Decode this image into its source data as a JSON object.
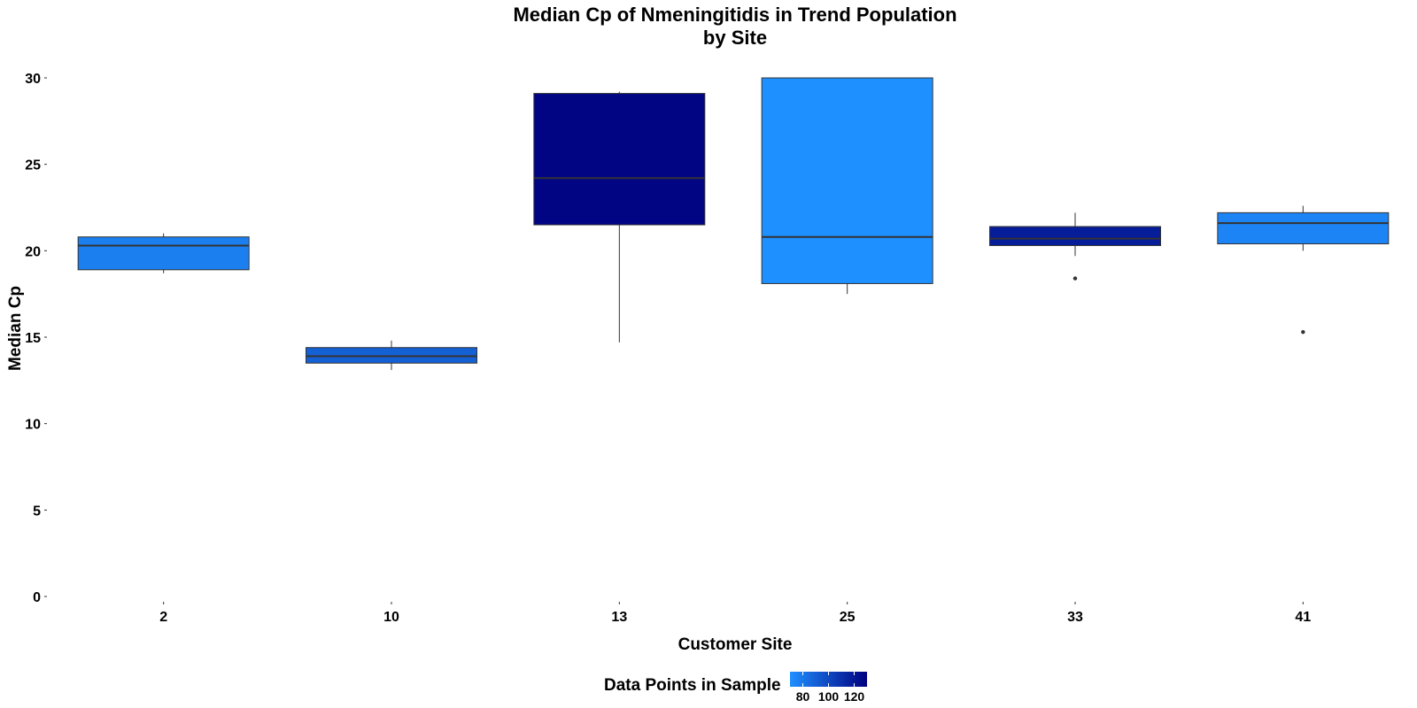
{
  "chart_data": {
    "type": "boxplot",
    "title_line1": "Median Cp of Nmeningitidis in Trend Population",
    "title_line2": "by Site",
    "xlabel": "Customer Site",
    "ylabel": "Median Cp",
    "ylim": [
      -1.5,
      31
    ],
    "yticks": [
      0,
      5,
      10,
      15,
      20,
      25,
      30
    ],
    "grid": false,
    "categories": [
      "2",
      "10",
      "13",
      "25",
      "33",
      "41"
    ],
    "boxes": [
      {
        "site": "2",
        "whisker_low": 18.7,
        "q1": 18.9,
        "median": 20.3,
        "q3": 20.8,
        "whisker_high": 21.0,
        "outliers": [],
        "data_points": 77
      },
      {
        "site": "10",
        "whisker_low": 13.1,
        "q1": 13.5,
        "median": 13.9,
        "q3": 14.4,
        "whisker_high": 14.8,
        "outliers": [],
        "data_points": 90
      },
      {
        "site": "13",
        "whisker_low": 14.7,
        "q1": 21.5,
        "median": 24.2,
        "q3": 29.1,
        "whisker_high": 29.2,
        "outliers": [],
        "data_points": 128
      },
      {
        "site": "25",
        "whisker_low": 17.5,
        "q1": 18.1,
        "median": 20.8,
        "q3": 30.0,
        "whisker_high": 30.0,
        "outliers": [],
        "data_points": 70
      },
      {
        "site": "33",
        "whisker_low": 19.7,
        "q1": 20.3,
        "median": 20.7,
        "q3": 21.4,
        "whisker_high": 22.2,
        "outliers": [
          18.4
        ],
        "data_points": 118
      },
      {
        "site": "41",
        "whisker_low": 20.0,
        "q1": 20.4,
        "median": 21.6,
        "q3": 22.2,
        "whisker_high": 22.6,
        "outliers": [
          15.3
        ],
        "data_points": 75
      }
    ],
    "legend": {
      "title": "Data Points in Sample",
      "placement": "bottom",
      "range": [
        70,
        130
      ],
      "low_color": "#1E90FF",
      "high_color": "#000080",
      "ticks": [
        80,
        100,
        120
      ]
    }
  }
}
